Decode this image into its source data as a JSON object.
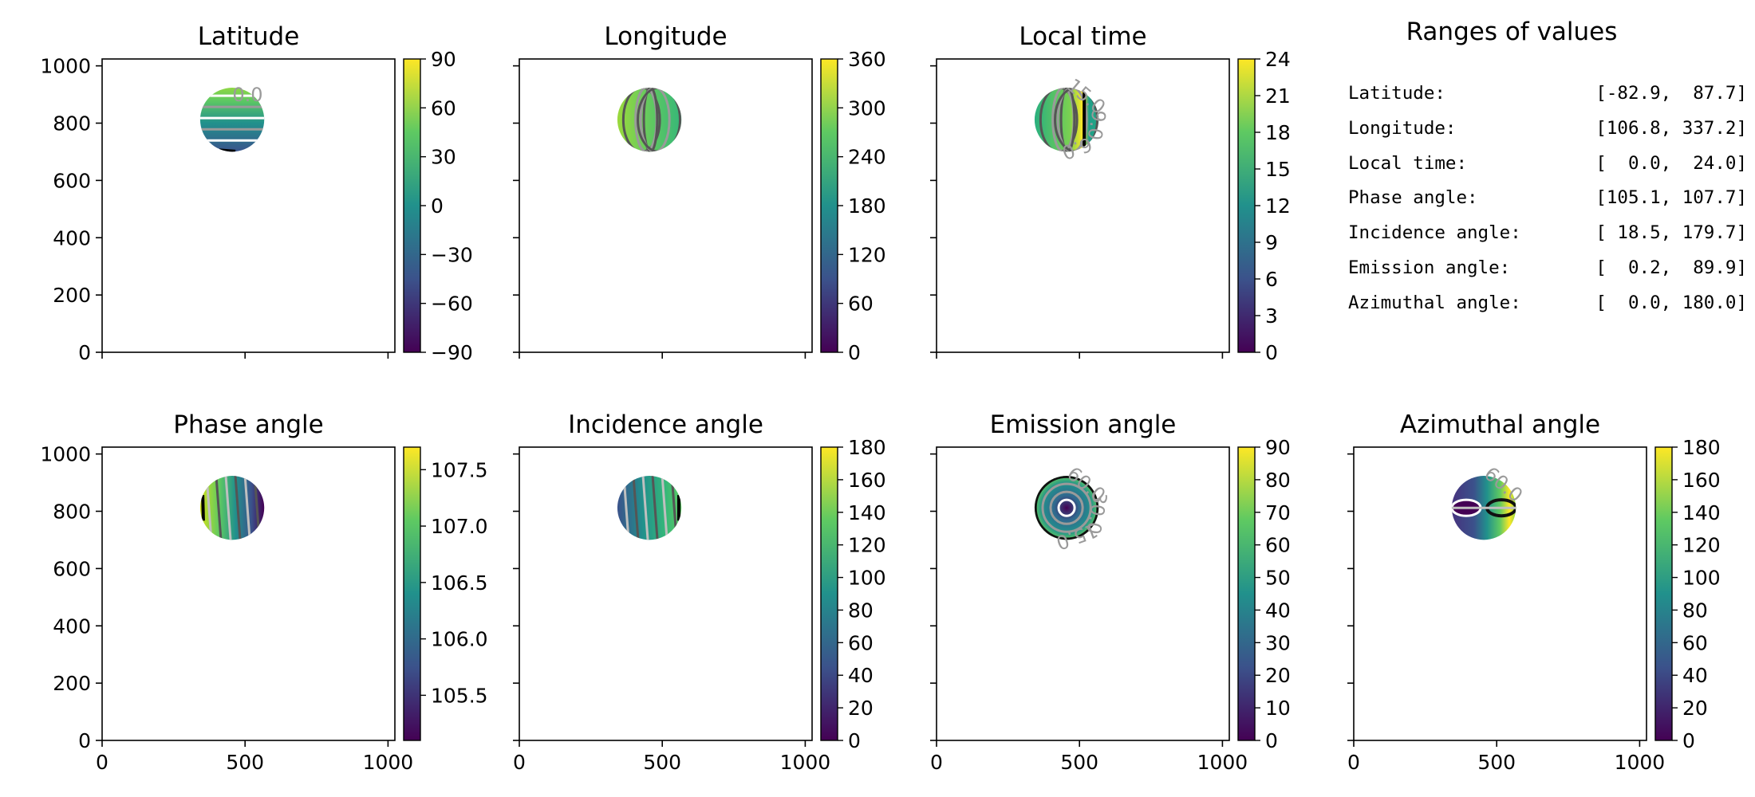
{
  "figure": {
    "ranges_title": "Ranges of values",
    "ranges": [
      {
        "label": "Latitude:",
        "value": "[-82.9,  87.7]"
      },
      {
        "label": "Longitude:",
        "value": "[106.8, 337.2]"
      },
      {
        "label": "Local time:",
        "value": "[  0.0,  24.0]"
      },
      {
        "label": "Phase angle:",
        "value": "[105.1, 107.7]"
      },
      {
        "label": "Incidence angle:",
        "value": "[ 18.5, 179.7]"
      },
      {
        "label": "Emission angle:",
        "value": "[  0.2,  89.9]"
      },
      {
        "label": "Azimuthal angle:",
        "value": "[  0.0, 180.0]"
      }
    ]
  },
  "chart_data": [
    {
      "type": "heatmap",
      "title": "Latitude",
      "x_ticks": [
        0,
        500,
        1000
      ],
      "y_ticks": [
        0,
        200,
        400,
        600,
        800,
        1000
      ],
      "show_x_ticklabels": false,
      "show_y_ticklabels": true,
      "xlim": [
        0,
        1024
      ],
      "ylim": [
        0,
        1024
      ],
      "disk_center": [
        455,
        812
      ],
      "disk_radius": 112,
      "colorbar": {
        "min": -90,
        "max": 90,
        "ticks": [
          -90,
          -60,
          -30,
          0,
          30,
          60,
          90
        ],
        "tick_labels": [
          "−90",
          "−60",
          "−30",
          "0",
          "30",
          "60",
          "90"
        ]
      },
      "gradient": "vertical",
      "contour_labels": [
        "0.0"
      ]
    },
    {
      "type": "heatmap",
      "title": "Longitude",
      "x_ticks": [
        0,
        500,
        1000
      ],
      "y_ticks": [
        0,
        200,
        400,
        600,
        800,
        1000
      ],
      "show_x_ticklabels": false,
      "show_y_ticklabels": false,
      "xlim": [
        0,
        1024
      ],
      "ylim": [
        0,
        1024
      ],
      "disk_center": [
        455,
        812
      ],
      "disk_radius": 112,
      "colorbar": {
        "min": 0,
        "max": 360,
        "ticks": [
          0,
          60,
          120,
          180,
          240,
          300,
          360
        ],
        "tick_labels": [
          "0",
          "60",
          "120",
          "180",
          "240",
          "300",
          "360"
        ]
      },
      "gradient": "longitude",
      "contour_labels": []
    },
    {
      "type": "heatmap",
      "title": "Local time",
      "x_ticks": [
        0,
        500,
        1000
      ],
      "y_ticks": [
        0,
        200,
        400,
        600,
        800,
        1000
      ],
      "show_x_ticklabels": false,
      "show_y_ticklabels": false,
      "xlim": [
        0,
        1024
      ],
      "ylim": [
        0,
        1024
      ],
      "disk_center": [
        455,
        812
      ],
      "disk_radius": 112,
      "colorbar": {
        "min": 0,
        "max": 24,
        "ticks": [
          0,
          3,
          6,
          9,
          12,
          15,
          18,
          21,
          24
        ],
        "tick_labels": [
          "0",
          "3",
          "6",
          "9",
          "12",
          "15",
          "18",
          "21",
          "24"
        ]
      },
      "gradient": "localtime",
      "contour_labels": [
        "15.0",
        "9.0",
        "6.0"
      ]
    },
    {
      "type": "heatmap",
      "title": "Phase angle",
      "x_ticks": [
        0,
        500,
        1000
      ],
      "y_ticks": [
        0,
        200,
        400,
        600,
        800,
        1000
      ],
      "show_x_ticklabels": true,
      "show_y_ticklabels": true,
      "xlim": [
        0,
        1024
      ],
      "ylim": [
        0,
        1024
      ],
      "disk_center": [
        455,
        812
      ],
      "disk_radius": 112,
      "colorbar": {
        "min": 105.1,
        "max": 107.7,
        "ticks": [
          105.5,
          106.0,
          106.5,
          107.0,
          107.5
        ],
        "tick_labels": [
          "105.5",
          "106.0",
          "106.5",
          "107.0",
          "107.5"
        ]
      },
      "gradient": "horizontal_desc",
      "contour_labels": []
    },
    {
      "type": "heatmap",
      "title": "Incidence angle",
      "x_ticks": [
        0,
        500,
        1000
      ],
      "y_ticks": [
        0,
        200,
        400,
        600,
        800,
        1000
      ],
      "show_x_ticklabels": true,
      "show_y_ticklabels": false,
      "xlim": [
        0,
        1024
      ],
      "ylim": [
        0,
        1024
      ],
      "disk_center": [
        455,
        812
      ],
      "disk_radius": 112,
      "colorbar": {
        "min": 0,
        "max": 180,
        "ticks": [
          0,
          20,
          40,
          60,
          80,
          100,
          120,
          140,
          160,
          180
        ],
        "tick_labels": [
          "0",
          "20",
          "40",
          "60",
          "80",
          "100",
          "120",
          "140",
          "160",
          "180"
        ]
      },
      "gradient": "horizontal_asc",
      "contour_labels": []
    },
    {
      "type": "heatmap",
      "title": "Emission angle",
      "x_ticks": [
        0,
        500,
        1000
      ],
      "y_ticks": [
        0,
        200,
        400,
        600,
        800,
        1000
      ],
      "show_x_ticklabels": true,
      "show_y_ticklabels": false,
      "xlim": [
        0,
        1024
      ],
      "ylim": [
        0,
        1024
      ],
      "disk_center": [
        455,
        812
      ],
      "disk_radius": 112,
      "colorbar": {
        "min": 0,
        "max": 90,
        "ticks": [
          0,
          10,
          20,
          30,
          40,
          50,
          60,
          70,
          80,
          90
        ],
        "tick_labels": [
          "0",
          "10",
          "20",
          "30",
          "40",
          "50",
          "60",
          "70",
          "80",
          "90"
        ]
      },
      "gradient": "radial",
      "contour_labels": [
        "60.0",
        "30.0",
        "15.0"
      ]
    },
    {
      "type": "heatmap",
      "title": "Azimuthal angle",
      "x_ticks": [
        0,
        500,
        1000
      ],
      "y_ticks": [
        0,
        200,
        400,
        600,
        800,
        1000
      ],
      "show_x_ticklabels": true,
      "show_y_ticklabels": false,
      "xlim": [
        0,
        1024
      ],
      "ylim": [
        0,
        1024
      ],
      "disk_center": [
        455,
        812
      ],
      "disk_radius": 112,
      "colorbar": {
        "min": 0,
        "max": 180,
        "ticks": [
          0,
          20,
          40,
          60,
          80,
          100,
          120,
          140,
          160,
          180
        ],
        "tick_labels": [
          "0",
          "20",
          "40",
          "60",
          "80",
          "100",
          "120",
          "140",
          "160",
          "180"
        ]
      },
      "gradient": "azimuth",
      "contour_labels": [
        "60.0"
      ]
    }
  ]
}
